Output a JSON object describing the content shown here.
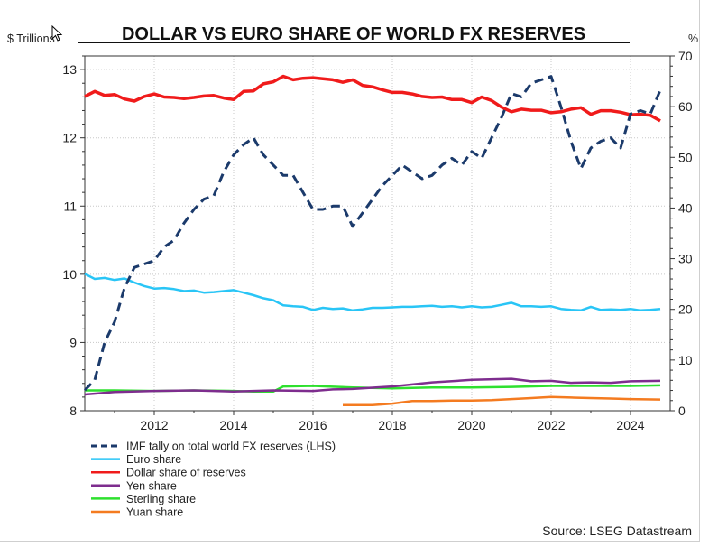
{
  "chart_data": {
    "type": "line",
    "title": "DOLLAR VS EURO SHARE OF WORLD FX RESERVES",
    "left_axis_label": "$ Trillions",
    "right_axis_label": "%",
    "source": "Source: LSEG Datastream",
    "x_range": [
      2010.25,
      2025.0
    ],
    "x_ticks": [
      2012,
      2014,
      2016,
      2018,
      2020,
      2022,
      2024
    ],
    "x_tick_labels": [
      "2012",
      "2014",
      "2016",
      "2018",
      "2020",
      "2022",
      "2024"
    ],
    "ylim_left": [
      8,
      13.2
    ],
    "ylim_right": [
      0,
      70
    ],
    "left_ticks": [
      8,
      9,
      10,
      11,
      12,
      13
    ],
    "left_tick_labels": [
      "8",
      "9",
      "10",
      "11",
      "12",
      "13"
    ],
    "right_ticks": [
      0,
      10,
      20,
      30,
      40,
      50,
      60,
      70
    ],
    "right_tick_labels": [
      "0",
      "10",
      "20",
      "30",
      "40",
      "50",
      "60",
      "70"
    ],
    "series": [
      {
        "name": "IMF tally on total world FX reserves (LHS)",
        "axis": "left",
        "color": "#1b3a6b",
        "dashed": true,
        "x": [
          2010.25,
          2010.5,
          2010.75,
          2011.0,
          2011.25,
          2011.5,
          2011.75,
          2012.0,
          2012.25,
          2012.5,
          2012.75,
          2013.0,
          2013.25,
          2013.5,
          2013.75,
          2014.0,
          2014.25,
          2014.5,
          2014.75,
          2015.0,
          2015.25,
          2015.5,
          2015.75,
          2016.0,
          2016.25,
          2016.5,
          2016.75,
          2017.0,
          2017.25,
          2017.5,
          2017.75,
          2018.0,
          2018.25,
          2018.5,
          2018.75,
          2019.0,
          2019.25,
          2019.5,
          2019.75,
          2020.0,
          2020.25,
          2020.5,
          2020.75,
          2021.0,
          2021.25,
          2021.5,
          2021.75,
          2022.0,
          2022.25,
          2022.5,
          2022.75,
          2023.0,
          2023.25,
          2023.5,
          2023.75,
          2024.0,
          2024.25,
          2024.5,
          2024.75
        ],
        "values": [
          8.3,
          8.45,
          9.0,
          9.3,
          9.8,
          10.1,
          10.15,
          10.2,
          10.4,
          10.5,
          10.75,
          10.95,
          11.1,
          11.15,
          11.5,
          11.75,
          11.9,
          12.0,
          11.75,
          11.6,
          11.45,
          11.45,
          11.2,
          10.95,
          10.95,
          11.0,
          11.0,
          10.7,
          10.9,
          11.1,
          11.3,
          11.45,
          11.6,
          11.5,
          11.4,
          11.45,
          11.6,
          11.7,
          11.6,
          11.8,
          11.7,
          12.0,
          12.3,
          12.65,
          12.6,
          12.8,
          12.85,
          12.9,
          12.45,
          11.95,
          11.55,
          11.85,
          11.95,
          12.0,
          11.85,
          12.35,
          12.4,
          12.35,
          12.7
        ]
      },
      {
        "name": "Euro share",
        "axis": "right",
        "color": "#29c5f6",
        "dashed": false,
        "x": [
          2010.25,
          2010.5,
          2010.75,
          2011.0,
          2011.25,
          2011.5,
          2011.75,
          2012.0,
          2012.25,
          2012.5,
          2012.75,
          2013.0,
          2013.25,
          2013.5,
          2013.75,
          2014.0,
          2014.25,
          2014.5,
          2014.75,
          2015.0,
          2015.25,
          2015.5,
          2015.75,
          2016.0,
          2016.25,
          2016.5,
          2016.75,
          2017.0,
          2017.25,
          2017.5,
          2017.75,
          2018.0,
          2018.25,
          2018.5,
          2018.75,
          2019.0,
          2019.25,
          2019.5,
          2019.75,
          2020.0,
          2020.25,
          2020.5,
          2020.75,
          2021.0,
          2021.25,
          2021.5,
          2021.75,
          2022.0,
          2022.25,
          2022.5,
          2022.75,
          2023.0,
          2023.25,
          2023.5,
          2023.75,
          2024.0,
          2024.25,
          2024.5,
          2024.75
        ],
        "values": [
          27.0,
          26.0,
          26.2,
          25.8,
          26.1,
          25.3,
          24.6,
          24.1,
          24.2,
          24.0,
          23.6,
          23.7,
          23.3,
          23.4,
          23.6,
          23.8,
          23.3,
          22.8,
          22.2,
          21.8,
          20.8,
          20.6,
          20.5,
          19.9,
          20.3,
          20.1,
          20.2,
          19.8,
          20.0,
          20.3,
          20.3,
          20.4,
          20.5,
          20.5,
          20.6,
          20.7,
          20.5,
          20.6,
          20.4,
          20.6,
          20.4,
          20.5,
          20.9,
          21.3,
          20.6,
          20.6,
          20.5,
          20.6,
          20.1,
          19.9,
          19.8,
          20.5,
          19.9,
          20.0,
          19.9,
          20.1,
          19.8,
          19.9,
          20.1
        ]
      },
      {
        "name": "Dollar share of reserves",
        "axis": "right",
        "color": "#f01b1b",
        "dashed": false,
        "x": [
          2010.25,
          2010.5,
          2010.75,
          2011.0,
          2011.25,
          2011.5,
          2011.75,
          2012.0,
          2012.25,
          2012.5,
          2012.75,
          2013.0,
          2013.25,
          2013.5,
          2013.75,
          2014.0,
          2014.25,
          2014.5,
          2014.75,
          2015.0,
          2015.25,
          2015.5,
          2015.75,
          2016.0,
          2016.25,
          2016.5,
          2016.75,
          2017.0,
          2017.25,
          2017.5,
          2017.75,
          2018.0,
          2018.25,
          2018.5,
          2018.75,
          2019.0,
          2019.25,
          2019.5,
          2019.75,
          2020.0,
          2020.25,
          2020.5,
          2020.75,
          2021.0,
          2021.25,
          2021.5,
          2021.75,
          2022.0,
          2022.25,
          2022.5,
          2022.75,
          2023.0,
          2023.25,
          2023.5,
          2023.75,
          2024.0,
          2024.25,
          2024.5,
          2024.75
        ],
        "values": [
          62.0,
          63.0,
          62.2,
          62.4,
          61.5,
          61.1,
          62.0,
          62.5,
          61.9,
          61.8,
          61.6,
          61.8,
          62.1,
          62.2,
          61.7,
          61.4,
          63.0,
          63.1,
          64.5,
          64.9,
          66.0,
          65.3,
          65.6,
          65.7,
          65.5,
          65.3,
          64.8,
          65.3,
          64.2,
          63.9,
          63.3,
          62.8,
          62.8,
          62.5,
          62.0,
          61.8,
          61.9,
          61.4,
          61.4,
          60.8,
          61.9,
          61.2,
          59.9,
          59.0,
          59.5,
          59.3,
          59.3,
          58.8,
          59.0,
          59.5,
          59.8,
          58.5,
          59.2,
          59.2,
          58.9,
          58.4,
          58.5,
          58.3,
          57.2
        ]
      },
      {
        "name": "Yen share",
        "axis": "right",
        "color": "#7e2d8e",
        "dashed": false,
        "x": [
          2010.25,
          2011.0,
          2012.0,
          2013.0,
          2014.0,
          2015.0,
          2016.0,
          2016.5,
          2017.0,
          2018.0,
          2019.0,
          2020.0,
          2021.0,
          2021.5,
          2022.0,
          2022.5,
          2023.0,
          2023.5,
          2024.0,
          2024.75
        ],
        "values": [
          3.2,
          3.7,
          3.9,
          4.0,
          3.8,
          4.0,
          3.9,
          4.2,
          4.3,
          4.8,
          5.6,
          6.1,
          6.3,
          5.8,
          5.9,
          5.5,
          5.6,
          5.5,
          5.8,
          5.9
        ]
      },
      {
        "name": "Sterling share",
        "axis": "right",
        "color": "#2ee02e",
        "dashed": false,
        "x": [
          2010.25,
          2011.0,
          2012.0,
          2013.0,
          2014.0,
          2014.5,
          2015.0,
          2015.25,
          2016.0,
          2017.0,
          2018.0,
          2019.0,
          2020.0,
          2021.0,
          2022.0,
          2023.0,
          2024.0,
          2024.75
        ],
        "values": [
          4.0,
          4.0,
          3.9,
          4.0,
          3.9,
          3.8,
          3.8,
          4.8,
          4.9,
          4.6,
          4.4,
          4.6,
          4.6,
          4.7,
          4.9,
          4.9,
          4.9,
          5.0
        ]
      },
      {
        "name": "Yuan share",
        "axis": "right",
        "color": "#f47b20",
        "dashed": false,
        "x": [
          2016.75,
          2017.0,
          2017.5,
          2018.0,
          2018.5,
          2019.0,
          2019.5,
          2020.0,
          2020.5,
          2021.0,
          2021.5,
          2022.0,
          2022.5,
          2023.0,
          2023.5,
          2024.0,
          2024.75
        ],
        "values": [
          1.1,
          1.1,
          1.1,
          1.4,
          1.9,
          1.9,
          2.0,
          2.0,
          2.1,
          2.3,
          2.5,
          2.7,
          2.6,
          2.5,
          2.4,
          2.3,
          2.2
        ]
      }
    ]
  }
}
